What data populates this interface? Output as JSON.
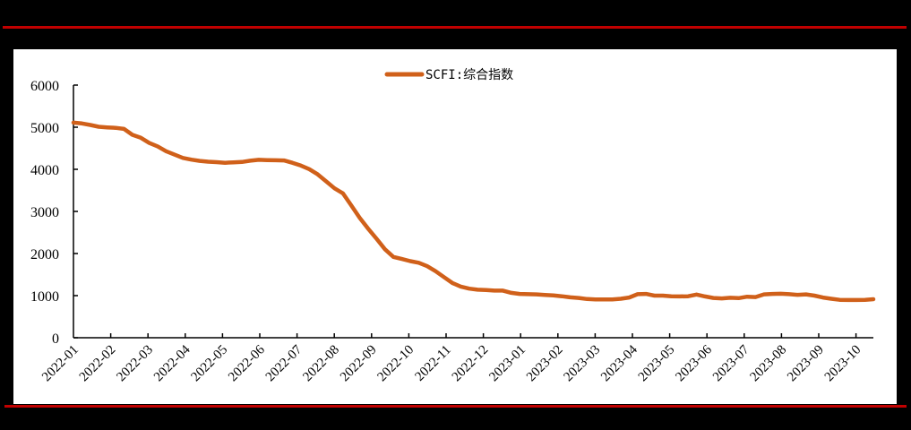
{
  "chart_data": {
    "type": "line",
    "title": "",
    "xlabel": "",
    "ylabel": "",
    "ylim": [
      0,
      6000
    ],
    "yticks": [
      0,
      1000,
      2000,
      3000,
      4000,
      5000,
      6000
    ],
    "grid": false,
    "legend_position": "top-center",
    "x_tick_labels": [
      "2022-01",
      "2022-02",
      "2022-03",
      "2022-04",
      "2022-05",
      "2022-06",
      "2022-07",
      "2022-08",
      "2022-09",
      "2022-10",
      "2022-11",
      "2022-12",
      "2023-01",
      "2023-02",
      "2023-03",
      "2023-04",
      "2023-05",
      "2023-06",
      "2023-07",
      "2023-08",
      "2023-09",
      "2023-10"
    ],
    "series": [
      {
        "name": "SCFI:综合指数",
        "color": "#d0601a",
        "frequency": "weekly",
        "start": "2022-01",
        "values": [
          5109,
          5090,
          5053,
          5010,
          4995,
          4985,
          4960,
          4820,
          4750,
          4625,
          4545,
          4430,
          4350,
          4270,
          4230,
          4200,
          4180,
          4170,
          4155,
          4165,
          4175,
          4205,
          4225,
          4220,
          4215,
          4210,
          4155,
          4090,
          4005,
          3880,
          3715,
          3550,
          3430,
          3140,
          2845,
          2590,
          2350,
          2100,
          1920,
          1870,
          1820,
          1780,
          1700,
          1580,
          1440,
          1300,
          1215,
          1165,
          1140,
          1135,
          1120,
          1120,
          1065,
          1040,
          1035,
          1030,
          1015,
          1005,
          985,
          960,
          945,
          920,
          910,
          910,
          910,
          925,
          955,
          1035,
          1040,
          1000,
          1000,
          985,
          980,
          985,
          1025,
          980,
          945,
          935,
          950,
          940,
          975,
          965,
          1030,
          1040,
          1045,
          1035,
          1020,
          1030,
          1000,
          955,
          925,
          900,
          895,
          895,
          900,
          915
        ]
      }
    ]
  },
  "legend": {
    "label": "SCFI:综合指数"
  }
}
